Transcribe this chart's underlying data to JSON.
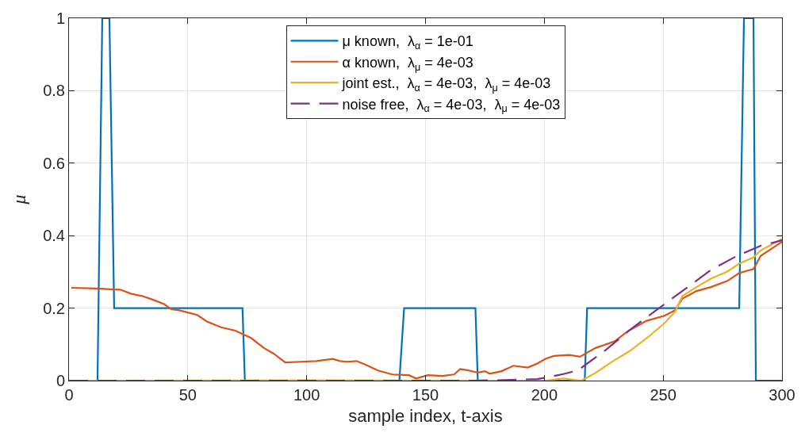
{
  "chart_data": {
    "type": "line",
    "xlabel": "sample index, t-axis",
    "ylabel": "μ",
    "xlim": [
      0,
      300
    ],
    "xticks": [
      0,
      50,
      100,
      150,
      200,
      250,
      300
    ],
    "ylim": [
      0,
      1
    ],
    "yticks": [
      0,
      0.2,
      0.4,
      0.6,
      0.8,
      1
    ],
    "grid": true,
    "legend": "top",
    "marker": "none",
    "series": [
      {
        "name": "μ known,  λ$_{α}$ = 1e-01",
        "color": "#0072bd",
        "line_style": "solid",
        "x": [
          0,
          12,
          14,
          17,
          19,
          73,
          74,
          139,
          141,
          171,
          172,
          217,
          218,
          282,
          284,
          288,
          289,
          300
        ],
        "values": [
          0,
          0,
          1,
          1,
          0.2,
          0.2,
          0,
          0,
          0.2,
          0.2,
          0,
          0,
          0.2,
          0.2,
          1,
          1,
          0,
          0
        ]
      },
      {
        "name": "α known,  λ$_{μ}$ = 4e-03",
        "color": "#d95319",
        "line_style": "solid",
        "x": [
          1,
          12,
          17.6,
          21.6,
          26,
          31,
          35,
          40,
          43,
          46.5,
          50,
          54,
          58,
          64,
          70,
          73.5,
          76.5,
          82,
          86,
          91,
          97.5,
          104,
          111,
          114,
          117,
          121,
          125,
          130,
          136,
          143,
          146,
          151,
          157,
          162,
          164.6,
          168,
          172,
          175,
          177,
          182,
          187,
          193,
          197,
          200.5,
          204,
          210.5,
          215,
          221.5,
          229.5,
          235.5,
          243,
          250.5,
          255,
          258,
          264,
          270,
          277,
          282,
          288,
          291,
          297,
          300
        ],
        "values": [
          0.256,
          0.254,
          0.252,
          0.251,
          0.24,
          0.233,
          0.224,
          0.211,
          0.197,
          0.194,
          0.188,
          0.181,
          0.163,
          0.147,
          0.138,
          0.127,
          0.118,
          0.09,
          0.075,
          0.05,
          0.052,
          0.054,
          0.06,
          0.054,
          0.052,
          0.054,
          0.043,
          0.028,
          0.017,
          0.015,
          0.006,
          0.015,
          0.013,
          0.017,
          0.032,
          0.028,
          0.022,
          0.026,
          0.019,
          0.026,
          0.041,
          0.036,
          0.047,
          0.06,
          0.068,
          0.071,
          0.066,
          0.09,
          0.108,
          0.138,
          0.165,
          0.179,
          0.194,
          0.226,
          0.247,
          0.258,
          0.275,
          0.297,
          0.308,
          0.344,
          0.37,
          0.383
        ]
      },
      {
        "name": "joint est.,  λ$_{α}$ = 4e-03,  λ$_{μ}$ = 4e-03",
        "color": "#edb120",
        "line_style": "solid",
        "x": [
          0,
          100,
          200,
          208,
          215.5,
          221.5,
          228,
          236,
          244,
          250.5,
          255,
          258,
          264,
          270,
          277,
          282,
          288,
          291,
          300
        ],
        "values": [
          0,
          0.001,
          0,
          0.006,
          0,
          0.021,
          0.05,
          0.082,
          0.122,
          0.158,
          0.19,
          0.233,
          0.258,
          0.281,
          0.301,
          0.323,
          0.34,
          0.359,
          0.391
        ]
      },
      {
        "name": "noise free,  λ$_{α}$ = 4e-03,  λ$_{μ}$ = 4e-03",
        "color": "#7e2f8e",
        "line_style": "dashed",
        "x": [
          0,
          170,
          180,
          190,
          197,
          208,
          214,
          225,
          236,
          247,
          259.5,
          270,
          281,
          291,
          300
        ],
        "values": [
          0,
          0,
          0.001,
          0.003,
          0.004,
          0.018,
          0.028,
          0.08,
          0.14,
          0.194,
          0.254,
          0.305,
          0.344,
          0.372,
          0.387
        ]
      }
    ]
  }
}
